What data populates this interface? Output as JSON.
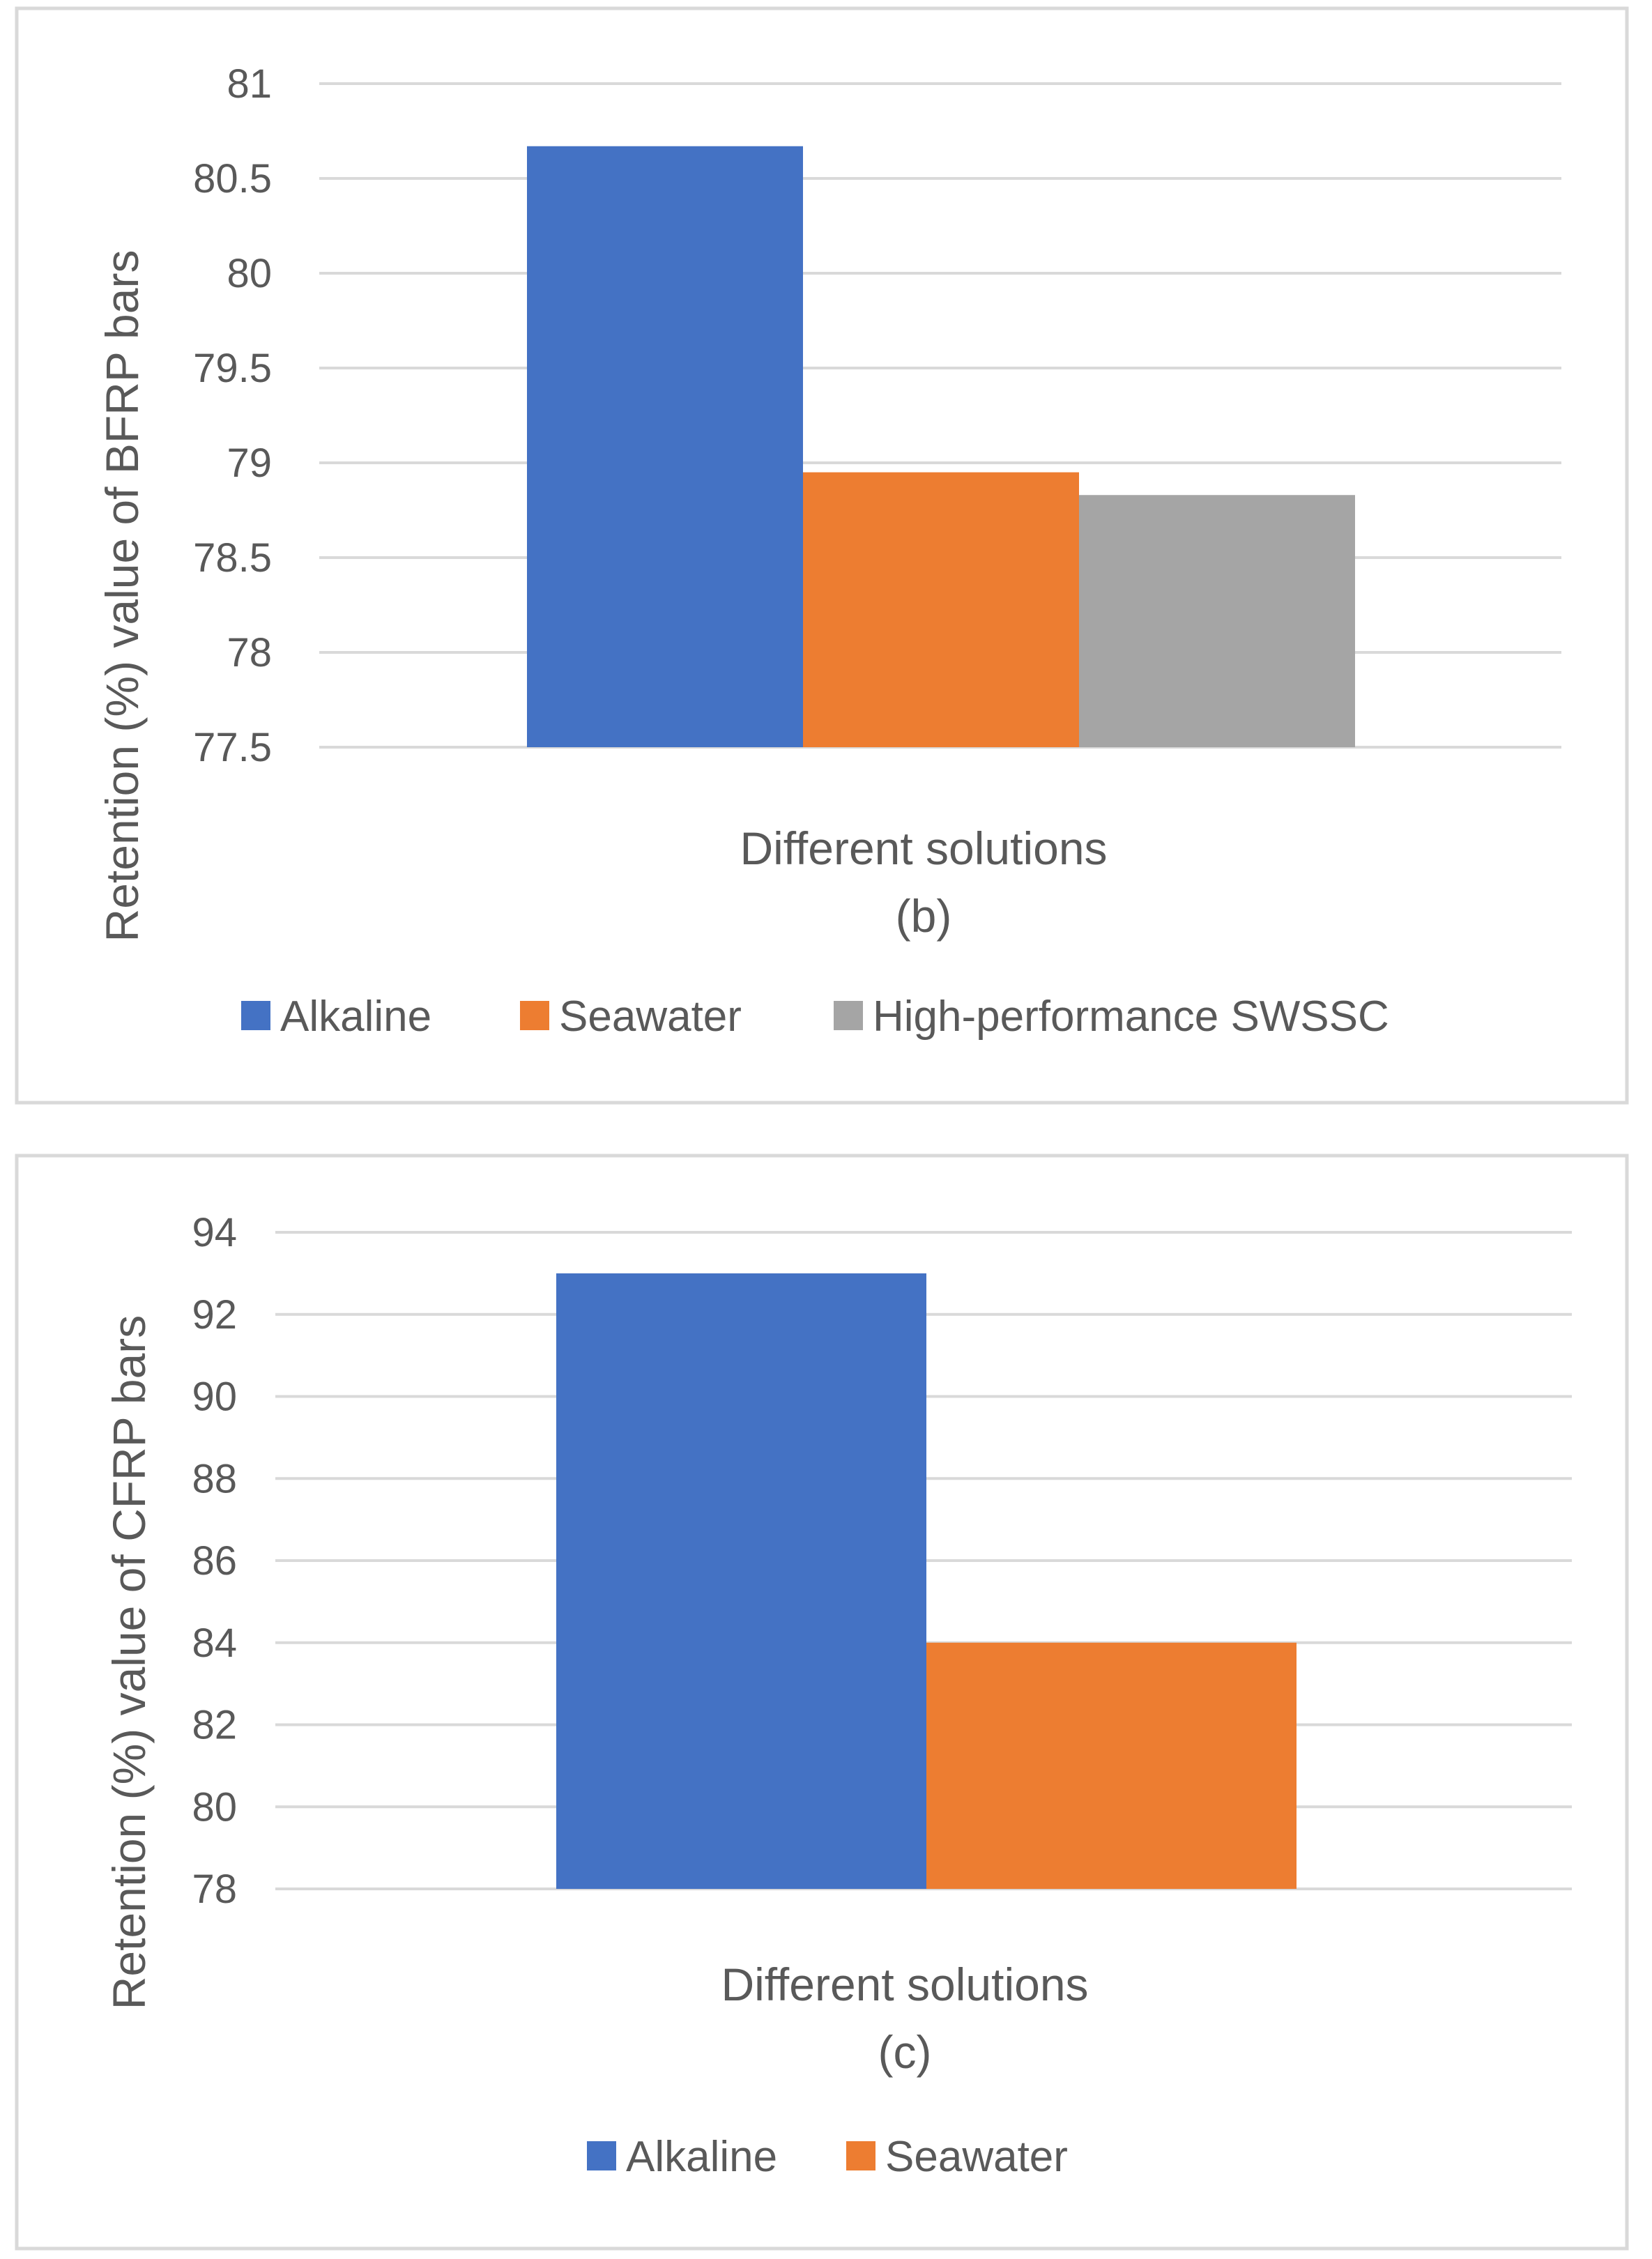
{
  "chart_data": [
    {
      "type": "bar",
      "panel_label": "(b)",
      "categories": [
        "Different solutions"
      ],
      "xlabel": "Different solutions",
      "ylabel": "Retention (%) value of BFRP bars",
      "ylim": [
        77.5,
        81
      ],
      "yticks": [
        "77.5",
        "78",
        "78.5",
        "79",
        "79.5",
        "80",
        "80.5",
        "81"
      ],
      "ytick_values": [
        77.5,
        78,
        78.5,
        79,
        79.5,
        80,
        80.5,
        81
      ],
      "grid": true,
      "legend_position": "bottom",
      "series": [
        {
          "name": "Alkaline",
          "values": [
            80.67
          ],
          "color": "#4472C4"
        },
        {
          "name": "Seawater",
          "values": [
            78.95
          ],
          "color": "#ED7D31"
        },
        {
          "name": "High-performance SWSSC",
          "values": [
            78.83
          ],
          "color": "#A5A5A5"
        }
      ]
    },
    {
      "type": "bar",
      "panel_label": "(c)",
      "categories": [
        "Different solutions"
      ],
      "xlabel": "Different solutions",
      "ylabel": "Retention (%) value of CFRP bars",
      "ylim": [
        78,
        94
      ],
      "yticks": [
        "78",
        "80",
        "82",
        "84",
        "86",
        "88",
        "90",
        "92",
        "94"
      ],
      "ytick_values": [
        78,
        80,
        82,
        84,
        86,
        88,
        90,
        92,
        94
      ],
      "grid": true,
      "legend_position": "bottom",
      "series": [
        {
          "name": "Alkaline",
          "values": [
            93.0
          ],
          "color": "#4472C4"
        },
        {
          "name": "Seawater",
          "values": [
            84.0
          ],
          "color": "#ED7D31"
        }
      ]
    }
  ]
}
